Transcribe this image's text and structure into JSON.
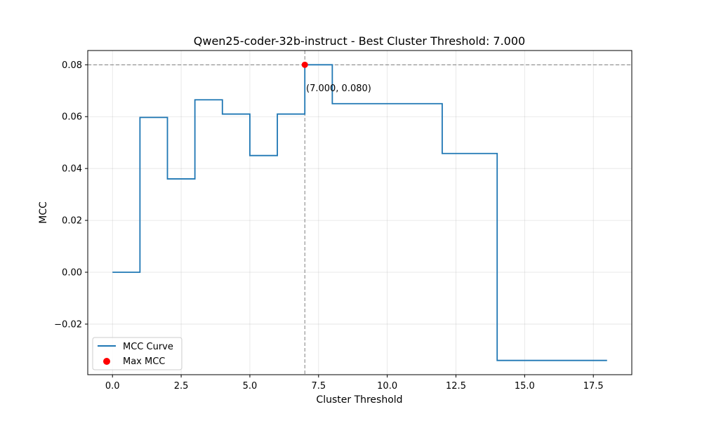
{
  "chart_data": {
    "type": "line",
    "title": "Qwen25-coder-32b-instruct - Best Cluster Threshold: 7.000",
    "xlabel": "Cluster Threshold",
    "ylabel": "MCC",
    "xlim": [
      -0.9,
      18.9
    ],
    "ylim": [
      -0.0395,
      0.0855
    ],
    "x_ticks": [
      0.0,
      2.5,
      5.0,
      7.5,
      10.0,
      12.5,
      15.0,
      17.5
    ],
    "x_tick_labels": [
      "0.0",
      "2.5",
      "5.0",
      "7.5",
      "10.0",
      "12.5",
      "15.0",
      "17.5"
    ],
    "y_ticks": [
      -0.02,
      0.0,
      0.02,
      0.04,
      0.06,
      0.08
    ],
    "y_tick_labels": [
      "−0.02",
      "0.00",
      "0.02",
      "0.04",
      "0.06",
      "0.08"
    ],
    "grid": true,
    "legend_position": "lower left",
    "series": [
      {
        "name": "MCC Curve",
        "color": "#1f77b4",
        "step": "post",
        "x": [
          0,
          1,
          2,
          3,
          4,
          5,
          6,
          7,
          8,
          9,
          10,
          11,
          12,
          13,
          14,
          15,
          16,
          17,
          18
        ],
        "values": [
          0.0,
          0.0597,
          0.036,
          0.0665,
          0.061,
          0.045,
          0.061,
          0.08,
          0.065,
          0.065,
          0.065,
          0.065,
          0.0458,
          0.0458,
          -0.034,
          -0.034,
          -0.034,
          -0.034,
          -0.034
        ]
      },
      {
        "name": "Max MCC",
        "color": "#ff0000",
        "type": "scatter",
        "x": [
          7.0
        ],
        "values": [
          0.08
        ]
      }
    ],
    "reference_lines": {
      "vertical_x": 7.0,
      "horizontal_y": 0.08,
      "color": "#808080",
      "style": "dashed"
    },
    "annotation": {
      "text": "(7.000, 0.080)",
      "x": 7.0,
      "y": 0.08
    }
  }
}
